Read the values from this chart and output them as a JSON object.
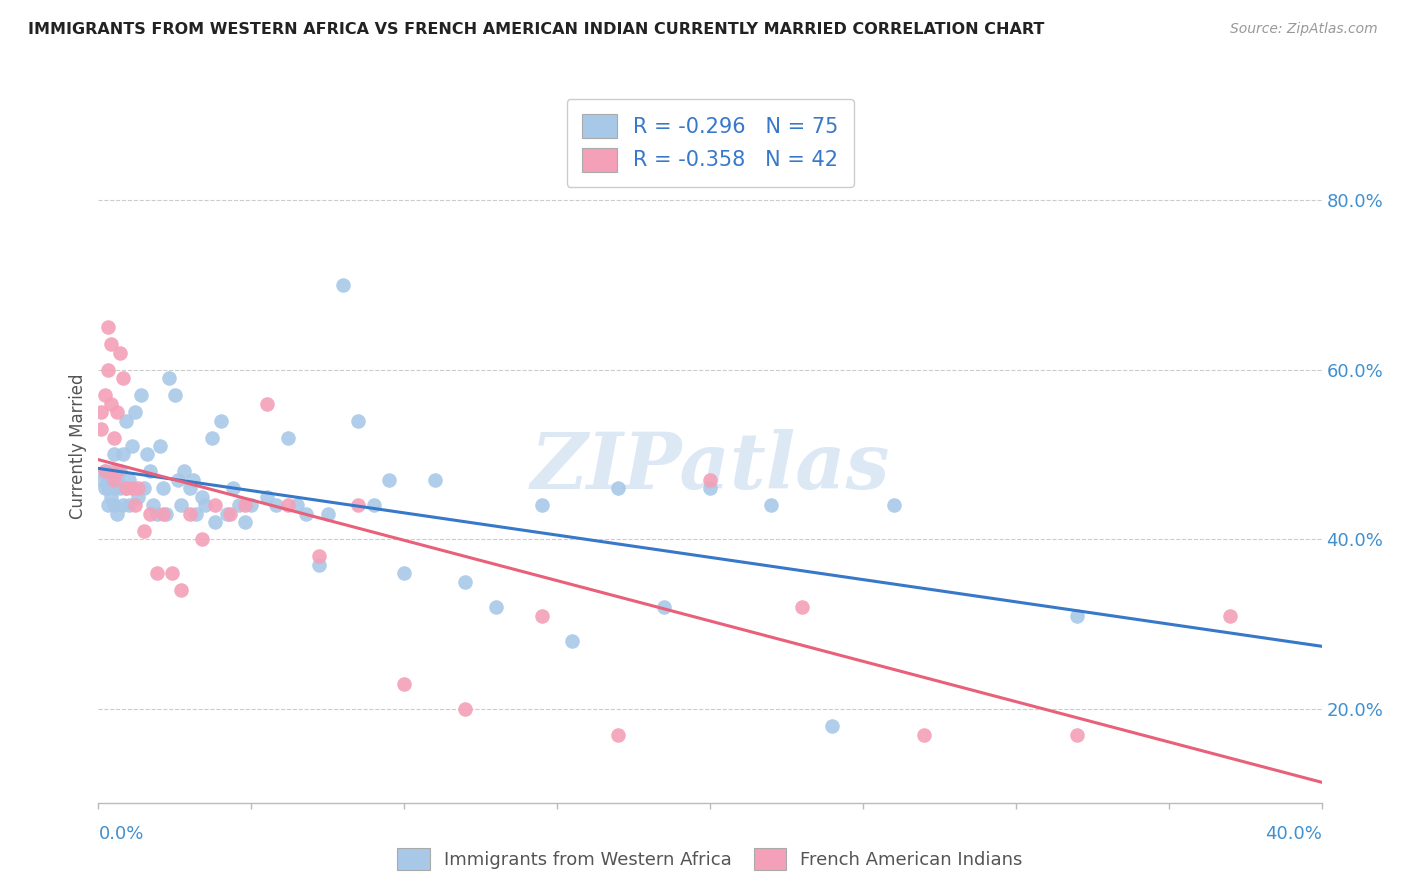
{
  "title": "IMMIGRANTS FROM WESTERN AFRICA VS FRENCH AMERICAN INDIAN CURRENTLY MARRIED CORRELATION CHART",
  "source": "Source: ZipAtlas.com",
  "ylabel": "Currently Married",
  "right_yticks": [
    "20.0%",
    "40.0%",
    "60.0%",
    "80.0%"
  ],
  "right_ytick_vals": [
    0.2,
    0.4,
    0.6,
    0.8
  ],
  "legend_label1": "Immigrants from Western Africa",
  "legend_label2": "French American Indians",
  "r1": -0.296,
  "n1": 75,
  "r2": -0.358,
  "n2": 42,
  "color_blue": "#a8c8e8",
  "color_pink": "#f4a0b8",
  "line_color_blue": "#3878c8",
  "line_color_pink": "#e8607a",
  "watermark": "ZIPatlas",
  "xlim": [
    0.0,
    0.4
  ],
  "ylim": [
    0.09,
    0.93
  ],
  "blue_points_x": [
    0.001,
    0.002,
    0.002,
    0.003,
    0.003,
    0.003,
    0.004,
    0.004,
    0.005,
    0.005,
    0.005,
    0.006,
    0.006,
    0.007,
    0.007,
    0.008,
    0.008,
    0.009,
    0.009,
    0.01,
    0.01,
    0.011,
    0.012,
    0.013,
    0.014,
    0.015,
    0.016,
    0.017,
    0.018,
    0.019,
    0.02,
    0.021,
    0.022,
    0.023,
    0.025,
    0.026,
    0.027,
    0.028,
    0.03,
    0.031,
    0.032,
    0.034,
    0.035,
    0.037,
    0.038,
    0.04,
    0.042,
    0.044,
    0.046,
    0.048,
    0.05,
    0.055,
    0.058,
    0.062,
    0.065,
    0.068,
    0.072,
    0.075,
    0.08,
    0.085,
    0.09,
    0.095,
    0.1,
    0.11,
    0.12,
    0.13,
    0.145,
    0.155,
    0.17,
    0.185,
    0.2,
    0.22,
    0.24,
    0.26,
    0.32
  ],
  "blue_points_y": [
    0.47,
    0.46,
    0.48,
    0.47,
    0.44,
    0.46,
    0.45,
    0.48,
    0.5,
    0.46,
    0.44,
    0.47,
    0.43,
    0.48,
    0.46,
    0.5,
    0.44,
    0.54,
    0.46,
    0.44,
    0.47,
    0.51,
    0.55,
    0.45,
    0.57,
    0.46,
    0.5,
    0.48,
    0.44,
    0.43,
    0.51,
    0.46,
    0.43,
    0.59,
    0.57,
    0.47,
    0.44,
    0.48,
    0.46,
    0.47,
    0.43,
    0.45,
    0.44,
    0.52,
    0.42,
    0.54,
    0.43,
    0.46,
    0.44,
    0.42,
    0.44,
    0.45,
    0.44,
    0.52,
    0.44,
    0.43,
    0.37,
    0.43,
    0.7,
    0.54,
    0.44,
    0.47,
    0.36,
    0.47,
    0.35,
    0.32,
    0.44,
    0.28,
    0.46,
    0.32,
    0.46,
    0.44,
    0.18,
    0.44,
    0.31
  ],
  "pink_points_x": [
    0.001,
    0.001,
    0.002,
    0.002,
    0.003,
    0.003,
    0.004,
    0.004,
    0.005,
    0.005,
    0.006,
    0.006,
    0.007,
    0.008,
    0.009,
    0.011,
    0.012,
    0.013,
    0.015,
    0.017,
    0.019,
    0.021,
    0.024,
    0.027,
    0.03,
    0.034,
    0.038,
    0.043,
    0.048,
    0.055,
    0.062,
    0.072,
    0.085,
    0.1,
    0.12,
    0.145,
    0.17,
    0.2,
    0.23,
    0.27,
    0.32,
    0.37
  ],
  "pink_points_y": [
    0.53,
    0.55,
    0.57,
    0.48,
    0.6,
    0.65,
    0.56,
    0.63,
    0.47,
    0.52,
    0.55,
    0.48,
    0.62,
    0.59,
    0.46,
    0.46,
    0.44,
    0.46,
    0.41,
    0.43,
    0.36,
    0.43,
    0.36,
    0.34,
    0.43,
    0.4,
    0.44,
    0.43,
    0.44,
    0.56,
    0.44,
    0.38,
    0.44,
    0.23,
    0.2,
    0.31,
    0.17,
    0.47,
    0.32,
    0.17,
    0.17,
    0.31
  ]
}
